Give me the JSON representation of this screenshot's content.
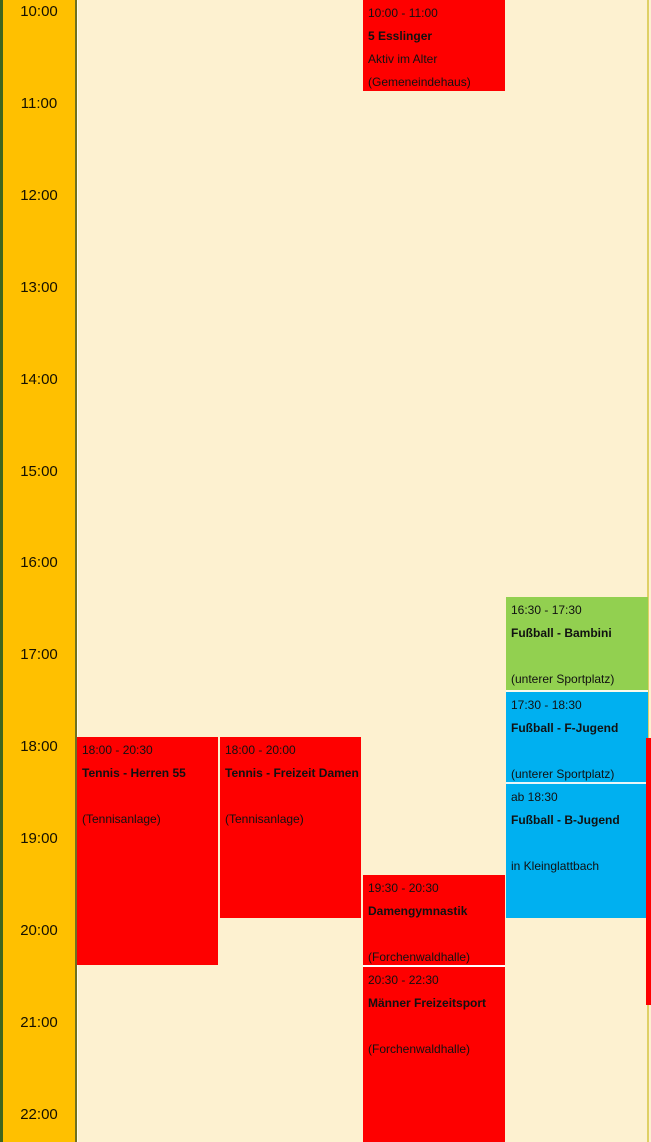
{
  "app": {
    "description_label": "weekly schedule day column view",
    "time_axis_start": "10:00",
    "time_axis_end": "22:00"
  },
  "palette": {
    "axis_gold": "#FFC000",
    "axis_border_green": "#40651D",
    "background_cream": "#FDF1D0",
    "event_red": "#FE0000",
    "event_green": "#92D050",
    "event_blue": "#00B0F0",
    "column_line_yellow": "#DFD065",
    "text_black": "#111111"
  },
  "timeline": {
    "labels": [
      "10:00",
      "11:00",
      "12:00",
      "13:00",
      "14:00",
      "15:00",
      "16:00",
      "17:00",
      "18:00",
      "19:00",
      "20:00",
      "21:00",
      "22:00"
    ]
  },
  "events": [
    {
      "time": "10:00 - 11:00",
      "title": "5 Esslinger",
      "subtitle": "Aktiv im Alter",
      "location": "(Gemeneindehaus)",
      "color": "red"
    },
    {
      "time": "16:30 - 17:30",
      "title": "Fußball - Bambini",
      "subtitle": "",
      "location": "(unterer Sportplatz)",
      "color": "green"
    },
    {
      "time": "17:30 - 18:30",
      "title": "Fußball - F-Jugend",
      "subtitle": "",
      "location": "(unterer Sportplatz)",
      "color": "blue"
    },
    {
      "time": "ab 18:30",
      "title": "Fußball - B-Jugend",
      "subtitle": "",
      "location": "in Kleinglattbach",
      "color": "blue"
    },
    {
      "time": "18:00 - 20:30",
      "title": "Tennis - Herren 55",
      "subtitle": "",
      "location": "(Tennisanlage)",
      "color": "red"
    },
    {
      "time": "18:00 - 20:00",
      "title": "Tennis - Freizeit Damen",
      "subtitle": "",
      "location": "(Tennisanlage)",
      "color": "red"
    },
    {
      "time": "19:30 - 20:30",
      "title": "Damengymnastik",
      "subtitle": "",
      "location": "(Forchenwaldhalle)",
      "color": "red"
    },
    {
      "time": "20:30 - 22:30",
      "title": "Männer Freizeitsport",
      "subtitle": "",
      "location": "(Forchenwaldhalle)",
      "color": "red"
    }
  ]
}
